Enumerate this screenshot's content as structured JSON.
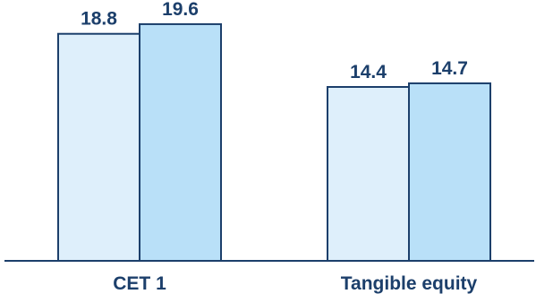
{
  "chart_data": {
    "type": "bar",
    "categories": [
      "CET 1",
      "Tangible equity"
    ],
    "series": [
      {
        "values": [
          18.8,
          14.4
        ],
        "color": "#deeffb"
      },
      {
        "values": [
          19.6,
          14.7
        ],
        "color": "#b9e0f8"
      }
    ],
    "ylim": [
      0,
      21.6
    ],
    "grid": false,
    "legend": "none",
    "colors": {
      "bar_stroke": "#1c3f6b",
      "axis": "#1c3f6b",
      "text": "#1c3f6b"
    }
  }
}
